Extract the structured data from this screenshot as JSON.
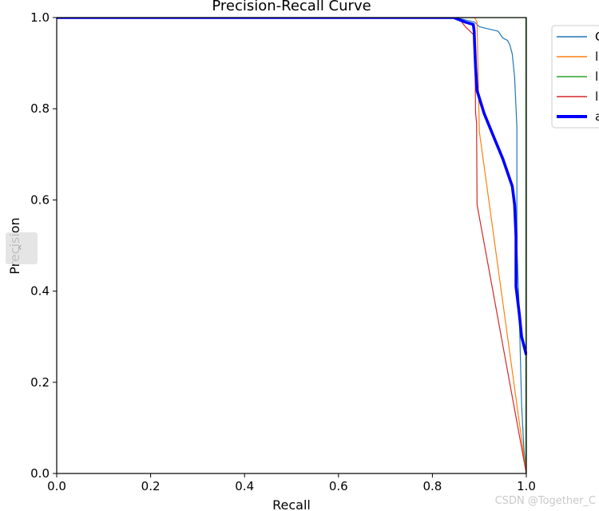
{
  "chart_data": {
    "type": "line",
    "title": "Precision-Recall Curve",
    "xlabel": "Recall",
    "ylabel": "Precision",
    "xlim": [
      0,
      1
    ],
    "ylim": [
      0,
      1
    ],
    "xticks": [
      "0.0",
      "0.2",
      "0.4",
      "0.6",
      "0.8",
      "1.0"
    ],
    "yticks": [
      "0.0",
      "0.2",
      "0.4",
      "0.6",
      "0.8",
      "1.0"
    ],
    "legend_position": "outside-top-right",
    "series": [
      {
        "name": "C",
        "color": "#1f77b4",
        "width": "thin",
        "x": [
          0,
          0.85,
          0.89,
          0.9,
          0.92,
          0.94,
          0.95,
          0.96,
          0.965,
          0.97,
          0.975,
          0.98,
          0.98,
          0.985,
          0.99,
          0.995,
          1.0
        ],
        "y": [
          1.0,
          1.0,
          0.99,
          0.98,
          0.975,
          0.97,
          0.955,
          0.95,
          0.94,
          0.92,
          0.87,
          0.76,
          0.5,
          0.35,
          0.15,
          0.05,
          0.0
        ]
      },
      {
        "name": "l",
        "color": "#ff7f0e",
        "width": "thin",
        "x": [
          0,
          0.89,
          0.895,
          0.898,
          0.9,
          1.0
        ],
        "y": [
          1.0,
          1.0,
          0.99,
          0.85,
          0.75,
          0.0
        ]
      },
      {
        "name": "l",
        "color": "#2ca02c",
        "width": "thin",
        "x": [
          0,
          0.999,
          0.999,
          1.0
        ],
        "y": [
          1.0,
          1.0,
          0.0,
          0.0
        ]
      },
      {
        "name": "l",
        "color": "#d62728",
        "width": "thin",
        "x": [
          0,
          0.855,
          0.87,
          0.88,
          0.89,
          0.892,
          0.894,
          0.895,
          1.0
        ],
        "y": [
          1.0,
          1.0,
          0.98,
          0.97,
          0.96,
          0.79,
          0.77,
          0.59,
          0.0
        ]
      },
      {
        "name": "a",
        "color": "#0000ff",
        "width": "thick",
        "x": [
          0,
          0.845,
          0.87,
          0.887,
          0.889,
          0.89,
          0.892,
          0.895,
          0.91,
          0.93,
          0.95,
          0.97,
          0.975,
          0.978,
          0.978,
          0.985,
          0.99,
          1.0
        ],
        "y": [
          1.0,
          1.0,
          0.99,
          0.985,
          0.97,
          0.94,
          0.89,
          0.84,
          0.79,
          0.74,
          0.69,
          0.63,
          0.59,
          0.52,
          0.41,
          0.35,
          0.3,
          0.26
        ]
      }
    ]
  },
  "watermark": "CSDN @Together_C",
  "scroll_handle_glyph": "‹"
}
